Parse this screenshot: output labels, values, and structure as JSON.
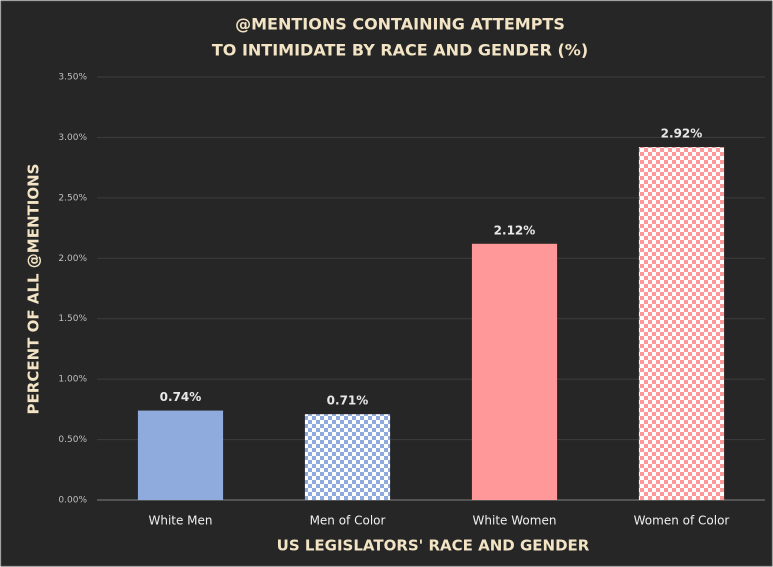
{
  "chart_data": {
    "type": "bar",
    "title": [
      "@MENTIONS CONTAINING ATTEMPTS",
      "TO INTIMIDATE BY RACE AND GENDER (%)"
    ],
    "x_label": "US LEGISLATORS' RACE AND GENDER",
    "y_label": "PERCENT OF ALL @MENTIONS",
    "categories": [
      "White Men",
      "Men of Color",
      "White Women",
      "Women of Color"
    ],
    "values": [
      0.74,
      0.71,
      2.12,
      2.92
    ],
    "value_labels": [
      "0.74%",
      "0.71%",
      "2.12%",
      "2.92%"
    ],
    "colors": [
      "#8faadc",
      "#8faadc",
      "#ff9999",
      "#ff9999"
    ],
    "patterns": [
      "solid",
      "checker",
      "solid",
      "checker"
    ],
    "ylim": [
      0,
      3.5
    ],
    "yticks": [
      {
        "value": 0,
        "label": "0.00%"
      },
      {
        "value": 0.5,
        "label": "0.50%"
      },
      {
        "value": 1,
        "label": "1.00%"
      },
      {
        "value": 1.5,
        "label": "1.50%"
      },
      {
        "value": 2,
        "label": "2.00%"
      },
      {
        "value": 2.5,
        "label": "2.50%"
      },
      {
        "value": 3,
        "label": "3.00%"
      },
      {
        "value": 3.5,
        "label": "3.50%"
      }
    ],
    "grid": true
  }
}
